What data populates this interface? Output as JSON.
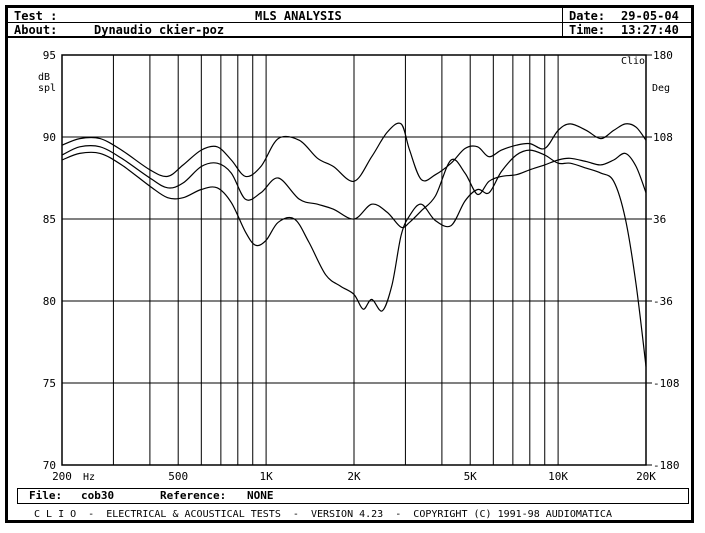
{
  "header": {
    "test_label": "Test :",
    "title": "MLS ANALYSIS",
    "date_label": "Date:",
    "date_value": "29-05-04",
    "about_label": "About:",
    "about_value": "Dynaudio ckier-poz",
    "time_label": "Time:",
    "time_value": "13:27:40"
  },
  "chart_data": {
    "type": "line",
    "xscale": "log",
    "xlim": [
      200,
      20000
    ],
    "ylim": [
      70,
      95
    ],
    "ylim_right": [
      -180,
      180
    ],
    "ylabel": "dB spl",
    "ylabel_right": "Deg",
    "corner_label": "Clio",
    "xunit": "Hz",
    "grid": true,
    "x_ticks": [
      {
        "value": 200,
        "label": "200"
      },
      {
        "value": 500,
        "label": "500"
      },
      {
        "value": 1000,
        "label": "1K"
      },
      {
        "value": 2000,
        "label": "2K"
      },
      {
        "value": 5000,
        "label": "5K"
      },
      {
        "value": 10000,
        "label": "10K"
      },
      {
        "value": 20000,
        "label": "20K"
      }
    ],
    "y_ticks": [
      {
        "value": 95,
        "label": "95"
      },
      {
        "value": 90,
        "label": "90"
      },
      {
        "value": 85,
        "label": "85"
      },
      {
        "value": 80,
        "label": "80"
      },
      {
        "value": 75,
        "label": "75"
      },
      {
        "value": 70,
        "label": "70"
      }
    ],
    "y_ticks_right": [
      {
        "value": 180,
        "label": "180"
      },
      {
        "value": 108,
        "label": "108"
      },
      {
        "value": 36,
        "label": "36"
      },
      {
        "value": -36,
        "label": "-36"
      },
      {
        "value": -108,
        "label": "-108"
      },
      {
        "value": -180,
        "label": "-180"
      }
    ],
    "series": [
      {
        "x": [
          200,
          230,
          270,
          320,
          400,
          460,
          520,
          600,
          680,
          760,
          850,
          960,
          1100,
          1300,
          1500,
          1700,
          2000,
          2300,
          2600,
          2900,
          3100,
          3400,
          3800,
          4300,
          4800,
          5300,
          5800,
          6400,
          7200,
          8000,
          9000,
          10000,
          11000,
          12500,
          14000,
          15500,
          17000,
          18500,
          20000
        ],
        "values": [
          89.5,
          89.9,
          89.9,
          89.2,
          88.0,
          87.6,
          88.3,
          89.2,
          89.4,
          88.6,
          87.6,
          88.2,
          89.9,
          89.8,
          88.7,
          88.2,
          87.3,
          88.8,
          90.3,
          90.8,
          89.2,
          87.4,
          87.7,
          88.4,
          89.3,
          89.4,
          88.8,
          89.2,
          89.5,
          89.6,
          89.3,
          90.4,
          90.8,
          90.4,
          89.9,
          90.4,
          90.8,
          90.6,
          89.8
        ]
      },
      {
        "x": [
          200,
          230,
          270,
          320,
          400,
          460,
          520,
          600,
          680,
          760,
          850,
          960,
          1100,
          1300,
          1500,
          1700,
          2000,
          2300,
          2600,
          2900,
          3100,
          3400,
          3800,
          4300,
          4800,
          5300,
          5800,
          6400,
          7200,
          8000,
          9000,
          10000,
          11000,
          12500,
          14000,
          15500,
          17000,
          18500,
          20000
        ],
        "values": [
          88.9,
          89.4,
          89.4,
          88.7,
          87.5,
          86.9,
          87.2,
          88.2,
          88.4,
          87.8,
          86.2,
          86.6,
          87.5,
          86.2,
          85.9,
          85.6,
          85.0,
          85.9,
          85.4,
          84.5,
          84.8,
          85.5,
          86.4,
          88.6,
          87.8,
          86.5,
          87.3,
          87.6,
          87.7,
          88.0,
          88.3,
          88.6,
          88.7,
          88.5,
          88.3,
          88.6,
          89.0,
          88.2,
          86.6
        ]
      },
      {
        "x": [
          200,
          230,
          270,
          320,
          400,
          460,
          520,
          600,
          680,
          760,
          850,
          920,
          1000,
          1100,
          1250,
          1400,
          1600,
          1800,
          2000,
          2150,
          2300,
          2500,
          2700,
          2900,
          3100,
          3400,
          3800,
          4300,
          4800,
          5300,
          5800,
          6400,
          7200,
          8000,
          9000,
          10000,
          11000,
          12500,
          14000,
          15500,
          17000,
          18500,
          20000
        ],
        "values": [
          88.6,
          89.0,
          89.0,
          88.3,
          87.0,
          86.3,
          86.3,
          86.8,
          86.9,
          86.0,
          84.2,
          83.4,
          83.7,
          84.8,
          85.0,
          83.6,
          81.6,
          80.9,
          80.4,
          79.5,
          80.1,
          79.4,
          81.0,
          84.0,
          85.2,
          85.9,
          84.9,
          84.6,
          86.1,
          86.8,
          86.6,
          87.9,
          88.9,
          89.2,
          88.9,
          88.4,
          88.4,
          88.1,
          87.8,
          87.3,
          85.0,
          81.0,
          76.0
        ]
      }
    ]
  },
  "file_bar": {
    "file_label": "File:",
    "file_value": "cob30",
    "reference_label": "Reference:",
    "reference_value": "NONE"
  },
  "footer": {
    "text": "C L I O  -  ELECTRICAL & ACOUSTICAL TESTS  -  VERSION 4.23  -  COPYRIGHT (C) 1991-98 AUDIOMATICA"
  }
}
